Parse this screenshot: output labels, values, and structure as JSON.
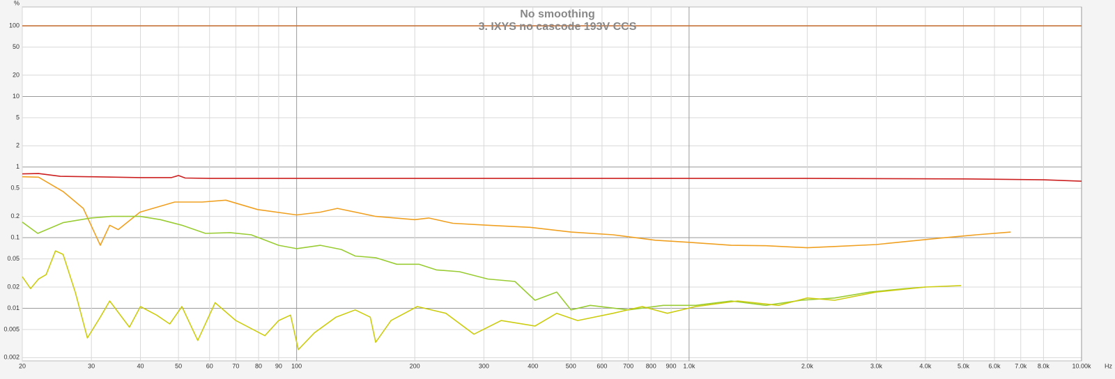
{
  "chart_data": {
    "type": "line",
    "title": "No smoothing",
    "subtitle": "3. IXYS no cascode 193V CCS",
    "x_unit": "Hz",
    "y_unit": "%",
    "log_x": true,
    "log_y": true,
    "grid": true,
    "xlim": [
      20,
      10000
    ],
    "ylim": [
      0.0018,
      185
    ],
    "xticks": [
      20,
      30,
      40,
      50,
      60,
      70,
      80,
      90,
      100,
      200,
      300,
      400,
      500,
      600,
      700,
      800,
      900,
      {
        "value": 1000,
        "label": "1.0k"
      },
      {
        "value": 2000,
        "label": "2.0k"
      },
      {
        "value": 3000,
        "label": "3.0k"
      },
      {
        "value": 4000,
        "label": "4.0k"
      },
      {
        "value": 5000,
        "label": "5.0k"
      },
      {
        "value": 6000,
        "label": "6.0k"
      },
      {
        "value": 7000,
        "label": "7.0k"
      },
      {
        "value": 8000,
        "label": "8.0k"
      },
      {
        "value": 10000,
        "label": "10.00k"
      }
    ],
    "yticks": [
      100,
      50,
      20,
      10,
      5,
      2,
      1,
      0.5,
      0.2,
      0.1,
      0.05,
      0.02,
      0.01,
      0.005,
      0.002
    ],
    "series": [
      {
        "color": "#c8733a",
        "x": [
          20,
          10000
        ],
        "values": [
          100,
          100
        ]
      },
      {
        "color": "#cc1f1f",
        "x": [
          20,
          22,
          25,
          30,
          40,
          48,
          50,
          52,
          60,
          100,
          200,
          500,
          1000,
          2000,
          5000,
          8000,
          10000
        ],
        "values": [
          0.8,
          0.81,
          0.74,
          0.73,
          0.71,
          0.71,
          0.76,
          0.7,
          0.69,
          0.69,
          0.69,
          0.69,
          0.69,
          0.69,
          0.68,
          0.66,
          0.63
        ]
      },
      {
        "color": "#f0a020",
        "x": [
          20,
          22,
          25.4,
          28.6,
          31.6,
          33.4,
          35.1,
          39.9,
          48.9,
          57.5,
          66,
          79.6,
          100,
          115,
          127,
          159,
          200,
          217,
          250,
          307,
          393,
          500,
          640,
          820,
          1000,
          1280,
          1570,
          2000,
          2350,
          3000,
          3550,
          4400,
          5400,
          6600
        ],
        "values": [
          0.73,
          0.72,
          0.45,
          0.26,
          0.078,
          0.15,
          0.13,
          0.23,
          0.32,
          0.32,
          0.34,
          0.25,
          0.21,
          0.23,
          0.26,
          0.2,
          0.18,
          0.19,
          0.16,
          0.15,
          0.14,
          0.12,
          0.11,
          0.092,
          0.086,
          0.078,
          0.077,
          0.072,
          0.075,
          0.08,
          0.088,
          0.099,
          0.11,
          0.12
        ]
      },
      {
        "color": "#99cc33",
        "x": [
          20,
          21.9,
          25.4,
          29.9,
          33.8,
          39.9,
          45,
          51,
          58.6,
          67.7,
          76.6,
          90,
          100,
          115,
          130,
          141,
          159,
          180,
          205,
          227,
          260,
          307,
          360,
          405,
          460,
          500,
          560,
          700,
          860,
          1040,
          1280,
          1570,
          1930,
          2350,
          2890,
          3550,
          4000
        ],
        "values": [
          0.166,
          0.115,
          0.163,
          0.19,
          0.2,
          0.2,
          0.18,
          0.15,
          0.115,
          0.118,
          0.11,
          0.078,
          0.07,
          0.078,
          0.068,
          0.055,
          0.052,
          0.042,
          0.042,
          0.035,
          0.033,
          0.026,
          0.024,
          0.013,
          0.017,
          0.0095,
          0.011,
          0.0095,
          0.011,
          0.011,
          0.0127,
          0.011,
          0.013,
          0.014,
          0.017,
          0.019,
          0.02
        ]
      },
      {
        "color": "#cccc11",
        "x": [
          20,
          21,
          22,
          23,
          24.3,
          25.4,
          27.3,
          29.3,
          31.6,
          33.4,
          37.5,
          40,
          44,
          47.5,
          51,
          56,
          62,
          70,
          83,
          90,
          96.5,
          101,
          111,
          126,
          141,
          154,
          159,
          174,
          203,
          240,
          283,
          332,
          405,
          460,
          520,
          640,
          760,
          880,
          1040,
          1330,
          1690,
          2000,
          2350,
          3000,
          4000,
          4930
        ],
        "values": [
          0.028,
          0.019,
          0.026,
          0.03,
          0.065,
          0.058,
          0.0168,
          0.0038,
          0.0075,
          0.0127,
          0.0054,
          0.0106,
          0.008,
          0.006,
          0.0106,
          0.0035,
          0.012,
          0.0067,
          0.0041,
          0.0067,
          0.008,
          0.0026,
          0.0045,
          0.0075,
          0.0095,
          0.0075,
          0.0033,
          0.0067,
          0.0106,
          0.0085,
          0.0043,
          0.0067,
          0.0056,
          0.0085,
          0.0067,
          0.0085,
          0.0106,
          0.0085,
          0.0106,
          0.0127,
          0.011,
          0.014,
          0.013,
          0.017,
          0.02,
          0.021
        ]
      }
    ]
  }
}
